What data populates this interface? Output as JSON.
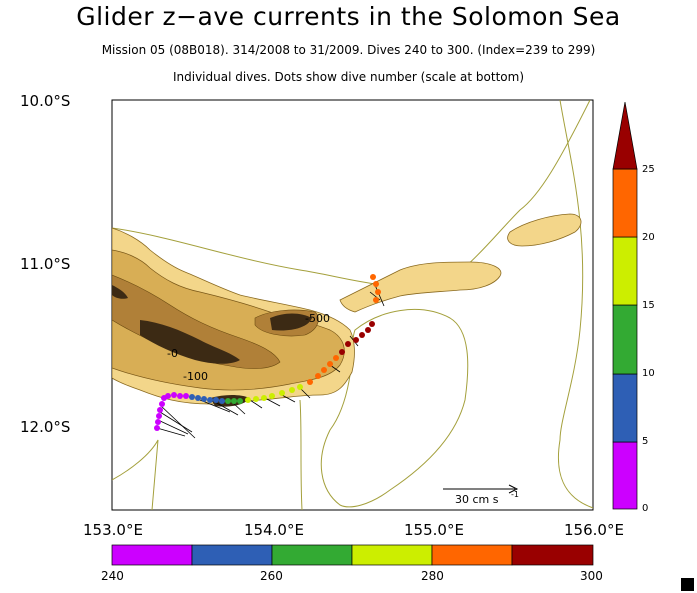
{
  "title": "Glider z−ave currents in the Solomon Sea",
  "subtitle": "Mission 05 (08B018). 314/2008 to 31/2009. Dives 240 to 300. (Index=239 to 299)",
  "subtitle2": "Individual dives. Dots show dive number (scale at bottom)",
  "lat_labels": [
    "10.0°S",
    "11.0°S",
    "12.0°S"
  ],
  "lon_labels": [
    "153.0°E",
    "154.0°E",
    "155.0°E",
    "156.0°E"
  ],
  "contour_labels": [
    "-100",
    "-0",
    "-500"
  ],
  "scale_label": "30 cm s",
  "scale_sup": "-1",
  "colorbar_ticks": [
    "25",
    "20",
    "15",
    "10",
    "5",
    "0"
  ],
  "colorbar_colors": [
    "#cc00ff",
    "#2e5fb5",
    "#33aa33",
    "#ccee00",
    "#ff6600",
    "#990000"
  ],
  "dive_ticks": [
    "240",
    "260",
    "280",
    "300"
  ]
}
